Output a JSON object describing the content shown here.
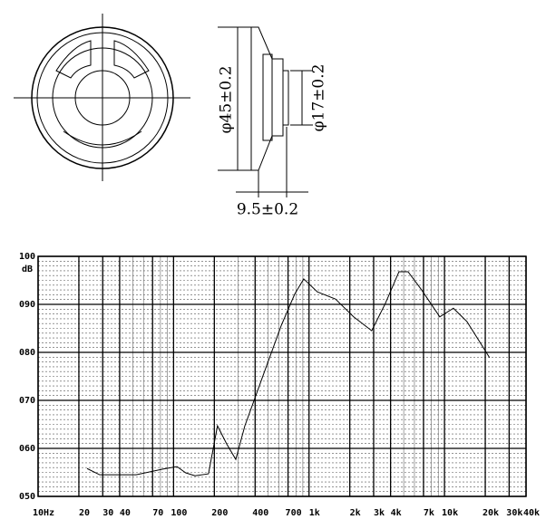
{
  "drawing": {
    "outer_diameter": "φ45±0.2",
    "magnet_diameter": "φ17±0.2",
    "depth": "9.5±0.2"
  },
  "chart_data": {
    "type": "line",
    "y_unit": "dB",
    "log_x": true,
    "xlim": [
      10,
      40000
    ],
    "ylim": [
      50,
      100
    ],
    "xticks": [
      {
        "value": 10,
        "label": "10Hz"
      },
      20,
      30,
      40,
      70,
      100,
      200,
      400,
      700,
      {
        "value": 1000,
        "label": "1k"
      },
      {
        "value": 2000,
        "label": "2k"
      },
      {
        "value": 3000,
        "label": "3k"
      },
      {
        "value": 4000,
        "label": "4k"
      },
      {
        "value": 7000,
        "label": "7k"
      },
      {
        "value": 10000,
        "label": "10k"
      },
      {
        "value": 20000,
        "label": "20k"
      },
      {
        "value": 30000,
        "label": "30k"
      },
      {
        "value": 40000,
        "label": "40k"
      }
    ],
    "yticks": [
      {
        "value": 50,
        "label": "050"
      },
      {
        "value": 60,
        "label": "060"
      },
      {
        "value": 70,
        "label": "070"
      },
      {
        "value": 80,
        "label": "080"
      },
      {
        "value": 90,
        "label": "090"
      },
      100
    ],
    "grid": true,
    "series": [
      {
        "color": "#000000",
        "x": [
          23,
          28.5,
          53,
          84,
          106,
          123,
          144,
          181,
          211,
          247,
          288,
          336,
          457,
          622,
          783,
          914,
          1152,
          1568,
          2134,
          2904,
          3661,
          4613,
          5383,
          6781,
          9229,
          11634,
          14658,
          21528
        ],
        "values": [
          55.8,
          54.5,
          54.5,
          55.7,
          56.2,
          54.9,
          54.3,
          54.7,
          64.7,
          60.9,
          57.7,
          64.7,
          75.1,
          85.5,
          92.1,
          95.3,
          92.6,
          91.1,
          87.4,
          84.5,
          90.2,
          96.8,
          96.8,
          93.0,
          87.4,
          89.2,
          86.4,
          78.9
        ]
      }
    ]
  }
}
